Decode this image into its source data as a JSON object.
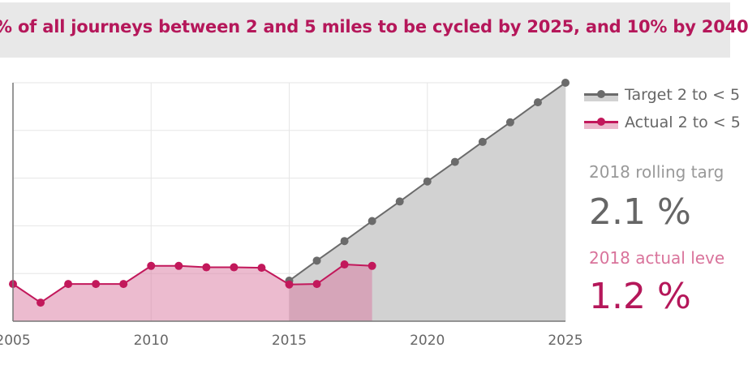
{
  "title": "% of all journeys between 2 and 5 miles to be cycled by 2025, and 10% by 2040",
  "legend": {
    "target": "Target 2 to < 5",
    "actual": "Actual 2 to < 5"
  },
  "stats": {
    "target_label": "2018 rolling targ",
    "target_value": "2.1 %",
    "actual_label": "2018 actual leve",
    "actual_value": "1.2 %"
  },
  "colors": {
    "target": "#6b6b6b",
    "target_fill": "#d2d2d2",
    "actual": "#c2185b",
    "actual_fill": "#ebb8cb",
    "title": "#b5175a"
  },
  "chart_data": {
    "type": "area",
    "xlim": [
      2005,
      2025
    ],
    "ylim": [
      0,
      5
    ],
    "x_ticks": [
      "2005",
      "2010",
      "2015",
      "2020",
      "2025"
    ],
    "grid": true,
    "legend_position": "top-right",
    "series": [
      {
        "name": "Target 2 to < 5",
        "x": [
          2015,
          2016,
          2017,
          2018,
          2019,
          2020,
          2021,
          2022,
          2023,
          2024,
          2025
        ],
        "values": [
          0.85,
          1.27,
          1.68,
          2.1,
          2.51,
          2.93,
          3.34,
          3.76,
          4.17,
          4.59,
          5.0
        ]
      },
      {
        "name": "Actual 2 to < 5",
        "x": [
          2005,
          2006,
          2007,
          2008,
          2009,
          2010,
          2011,
          2012,
          2013,
          2014,
          2015,
          2016,
          2017,
          2018
        ],
        "values": [
          0.78,
          0.39,
          0.78,
          0.78,
          0.78,
          1.16,
          1.16,
          1.13,
          1.13,
          1.12,
          0.77,
          0.78,
          1.19,
          1.16
        ]
      }
    ]
  }
}
